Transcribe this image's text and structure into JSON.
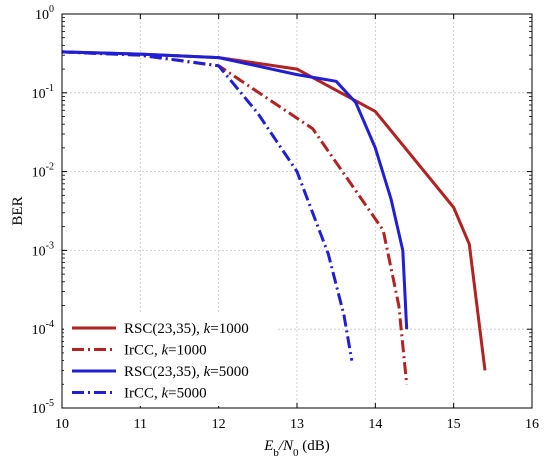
{
  "chart_data": {
    "type": "line",
    "xlabel": {
      "main": "E",
      "sub1": "b",
      "slash": "/N",
      "sub2": "0",
      "unit": " (dB)"
    },
    "ylabel": "BER",
    "xlim": [
      10,
      16
    ],
    "ylim": [
      1e-05,
      1
    ],
    "yscale": "log",
    "grid": true,
    "legend_position": "bottom-left",
    "x_ticks": [
      10,
      11,
      12,
      13,
      14,
      15,
      16
    ],
    "y_ticks": [
      {
        "value": 1e-05,
        "base": "10",
        "exp": "-5"
      },
      {
        "value": 0.0001,
        "base": "10",
        "exp": "-4"
      },
      {
        "value": 0.001,
        "base": "10",
        "exp": "-3"
      },
      {
        "value": 0.01,
        "base": "10",
        "exp": "-2"
      },
      {
        "value": 0.1,
        "base": "10",
        "exp": "-1"
      },
      {
        "value": 1,
        "base": "10",
        "exp": "0"
      }
    ],
    "series": [
      {
        "name": "RSC(23,35), k=1000",
        "label_prefix": "RSC(23,35), ",
        "label_var": "k",
        "label_suffix": "=1000",
        "color": "#b22222",
        "dash": "solid",
        "x": [
          10,
          11,
          12,
          13,
          14,
          15,
          15.2,
          15.4
        ],
        "y": [
          0.33,
          0.31,
          0.28,
          0.2,
          0.058,
          0.0035,
          0.0012,
          3e-05
        ]
      },
      {
        "name": "IrCC, k=1000",
        "label_prefix": "IrCC, ",
        "label_var": "k",
        "label_suffix": "=1000",
        "color": "#b22222",
        "dash": "dashdot",
        "x": [
          10,
          11,
          12,
          13.2,
          14.1,
          14.3,
          14.4
        ],
        "y": [
          0.33,
          0.3,
          0.22,
          0.035,
          0.0018,
          0.0002,
          2e-05
        ]
      },
      {
        "name": "RSC(23,35), k=5000",
        "label_prefix": "RSC(23,35), ",
        "label_var": "k",
        "label_suffix": "=5000",
        "color": "#1f1fd6",
        "dash": "solid",
        "x": [
          10,
          11,
          12,
          13,
          13.5,
          13.75,
          14,
          14.2,
          14.35,
          14.4
        ],
        "y": [
          0.33,
          0.31,
          0.28,
          0.17,
          0.14,
          0.075,
          0.02,
          0.0045,
          0.001,
          0.0001
        ]
      },
      {
        "name": "IrCC, k=5000",
        "label_prefix": "IrCC, ",
        "label_var": "k",
        "label_suffix": "=5000",
        "color": "#1f1fd6",
        "dash": "dashdot",
        "x": [
          10,
          11,
          12,
          12.5,
          13,
          13.4,
          13.6,
          13.7
        ],
        "y": [
          0.33,
          0.3,
          0.22,
          0.055,
          0.01,
          0.0009,
          0.00015,
          4e-05
        ]
      }
    ]
  }
}
